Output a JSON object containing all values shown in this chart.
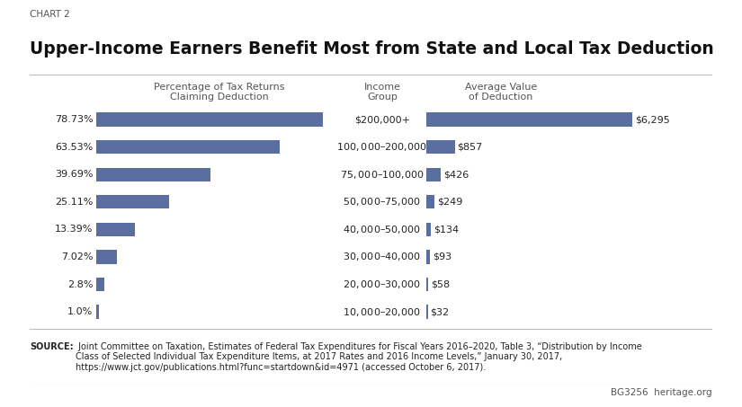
{
  "chart_label": "CHART 2",
  "title": "Upper-Income Earners Benefit Most from State and Local Tax Deduction",
  "income_groups": [
    "$200,000+",
    "$100,000–$200,000",
    "$75,000–$100,000",
    "$50,000–$75,000",
    "$40,000–$50,000",
    "$30,000–$40,000",
    "$20,000–$30,000",
    "$10,000–$20,000"
  ],
  "pct_values": [
    78.73,
    63.53,
    39.69,
    25.11,
    13.39,
    7.02,
    2.8,
    1.0
  ],
  "pct_labels": [
    "78.73%",
    "63.53%",
    "39.69%",
    "25.11%",
    "13.39%",
    "7.02%",
    "2.8%",
    "1.0%"
  ],
  "avg_values": [
    6295,
    857,
    426,
    249,
    134,
    93,
    58,
    32
  ],
  "avg_labels": [
    "$6,295",
    "$857",
    "$426",
    "$249",
    "$134",
    "$93",
    "$58",
    "$32"
  ],
  "bar_color": "#5a6fa0",
  "col_header_pct": "Percentage of Tax Returns\nClaiming Deduction",
  "col_header_group": "Income\nGroup",
  "col_header_avg": "Average Value\nof Deduction",
  "source_bold": "SOURCE:",
  "source_text": " Joint Committee on Taxation, Estimates of Federal Tax Expenditures for Fiscal Years 2016–2020, Table 3, “Distribution by Income\nClass of Selected Individual Tax Expenditure Items, at 2017 Rates and 2016 Income Levels,” January 30, 2017,\nhttps://www.jct.gov/publications.html?func=startdown&id=4971 (accessed October 6, 2017).",
  "footer_right": "BG3256  heritage.org",
  "background_color": "#ffffff",
  "text_color": "#222222",
  "header_color": "#555555",
  "line_color": "#bbbbbb"
}
